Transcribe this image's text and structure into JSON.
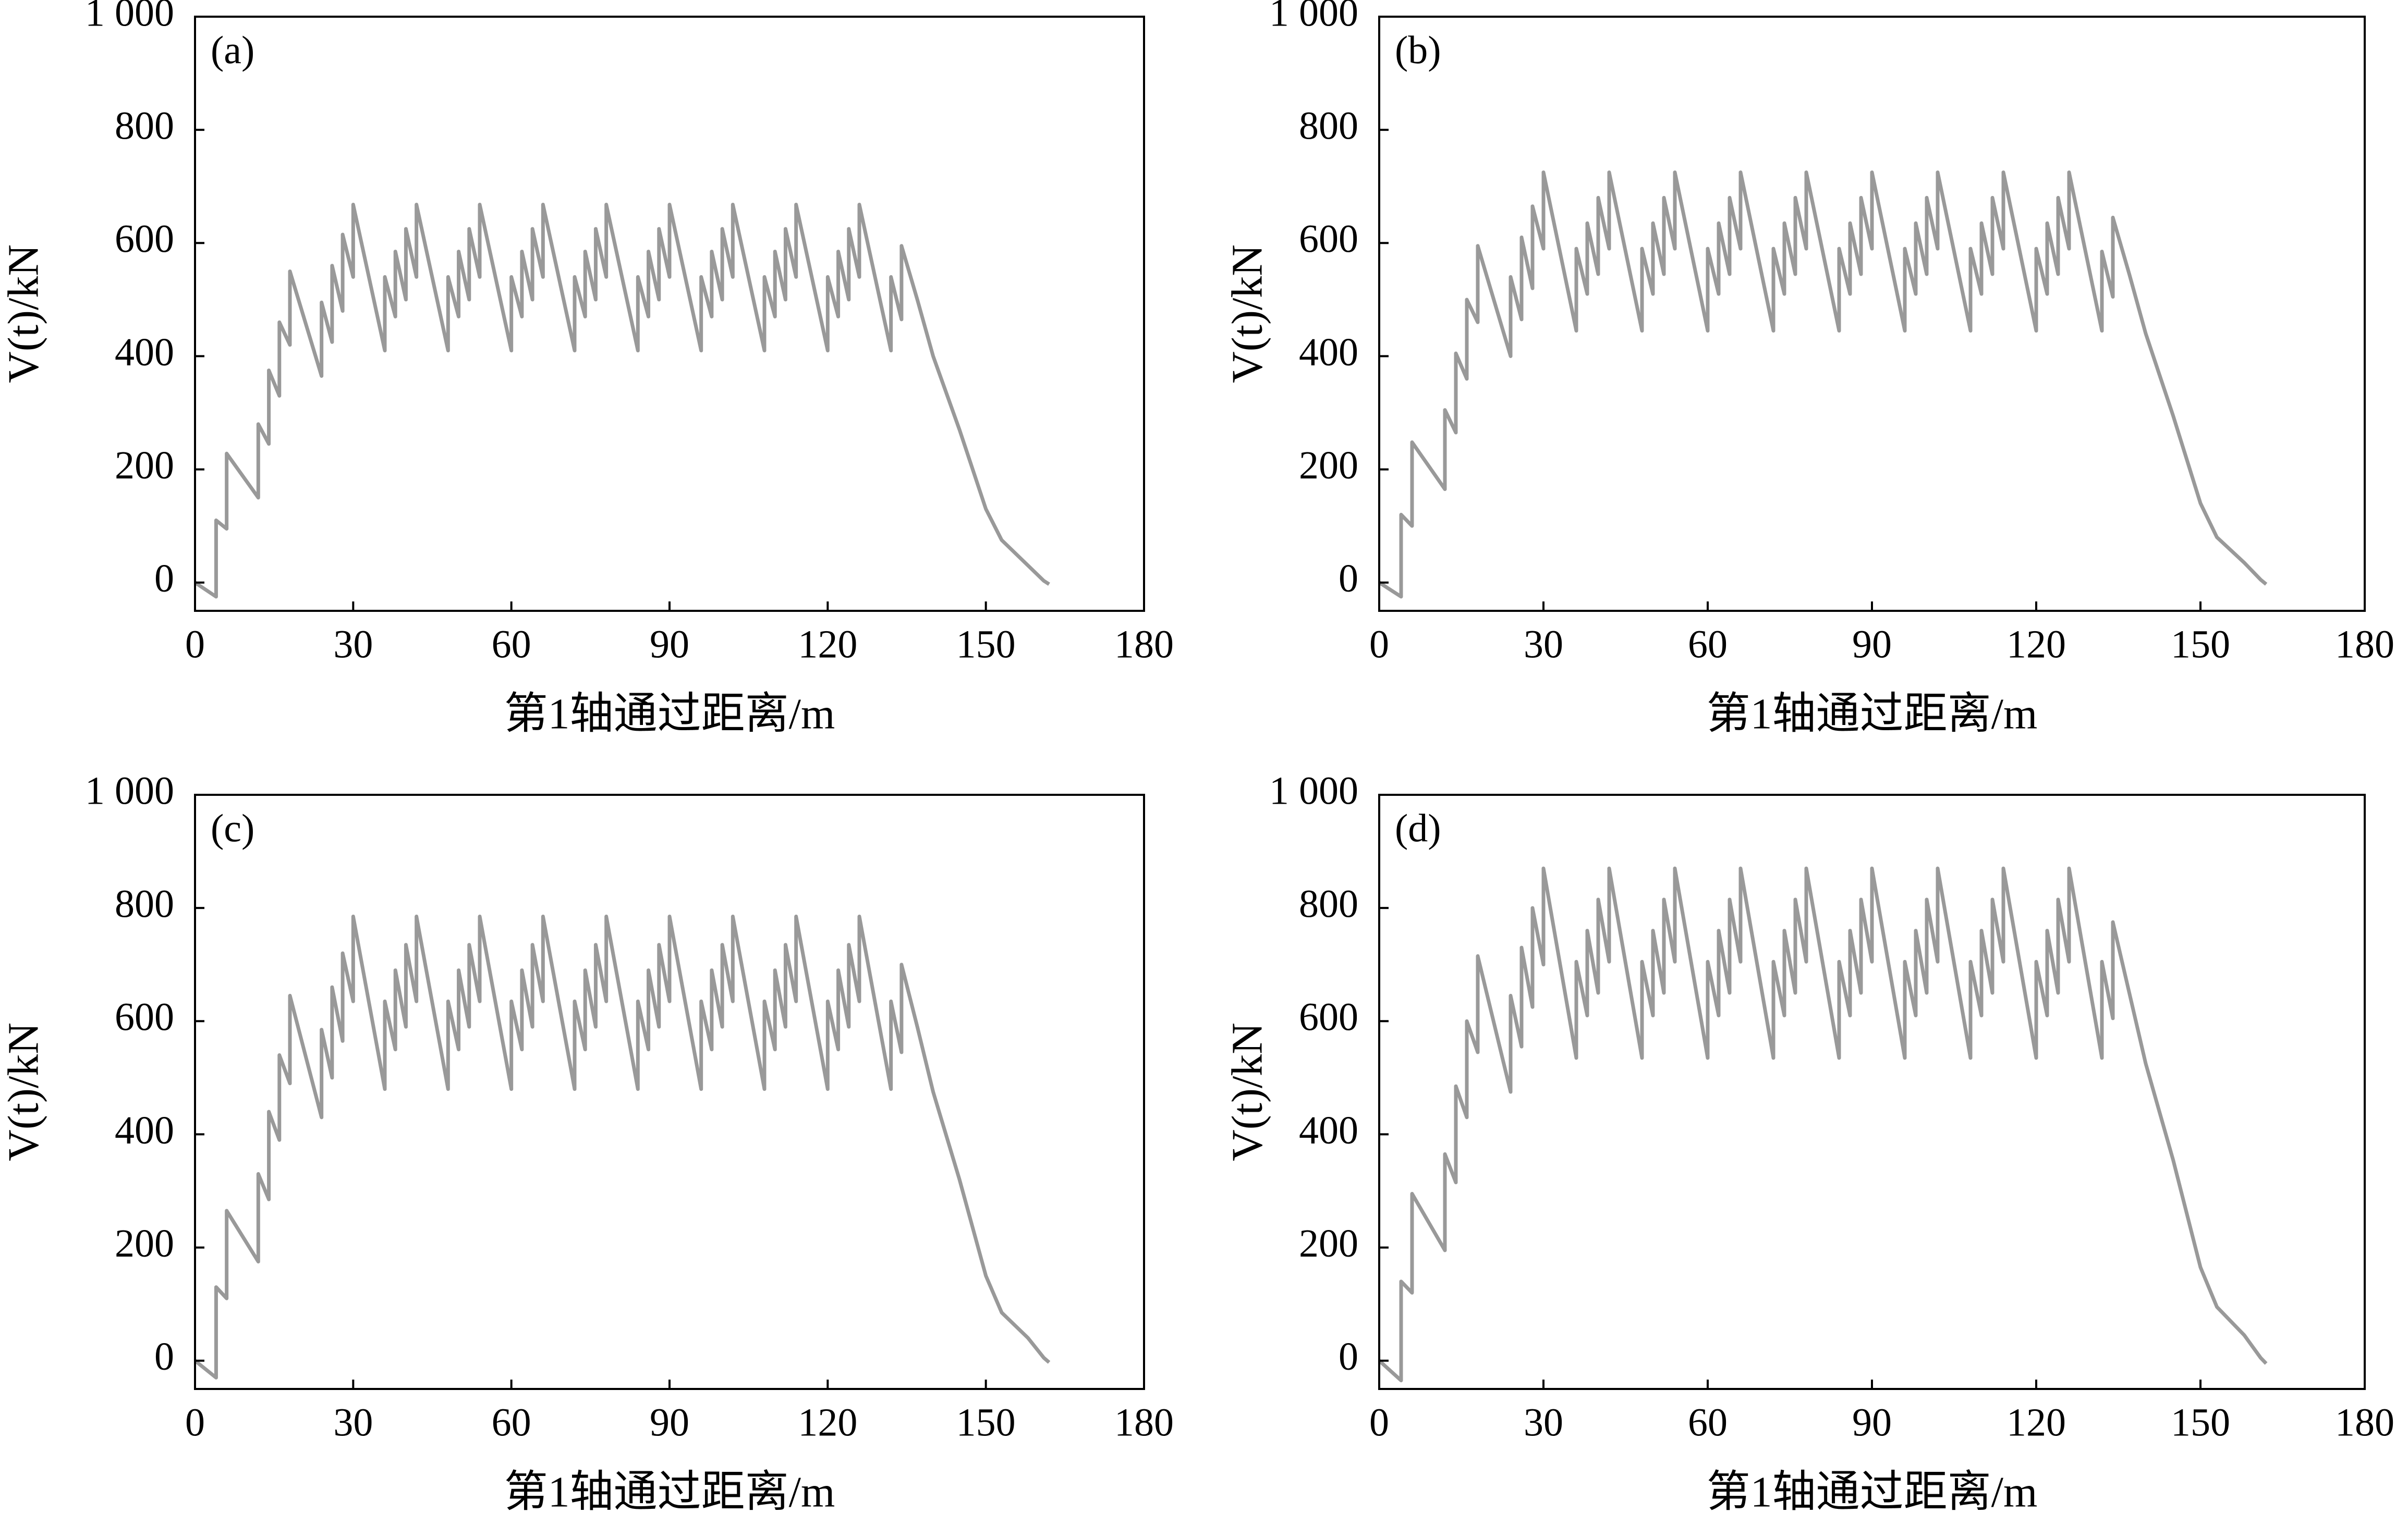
{
  "chart_data": [
    {
      "type": "line",
      "panel_label": "(a)",
      "xlabel": "第1轴通过距离/m",
      "ylabel": "V(t)/kN",
      "color": "#999999",
      "grid": false,
      "xlim": [
        0,
        180
      ],
      "xticks": [
        0,
        30,
        60,
        90,
        120,
        150,
        180
      ],
      "ylim": [
        -50,
        1000
      ],
      "yticks": [
        0,
        200,
        400,
        600,
        800,
        {
          "value": 1000,
          "label": "1 000"
        }
      ],
      "x": [
        0,
        4,
        4,
        6,
        6,
        12,
        12,
        14,
        14,
        16,
        16,
        18,
        18,
        24,
        24,
        26,
        26,
        28,
        28,
        30,
        30,
        36,
        36,
        38,
        38,
        40,
        40,
        42,
        42,
        48,
        48,
        50,
        50,
        52,
        52,
        54,
        54,
        60,
        60,
        62,
        62,
        64,
        64,
        66,
        66,
        72,
        72,
        74,
        74,
        76,
        76,
        78,
        78,
        84,
        84,
        86,
        86,
        88,
        88,
        90,
        90,
        96,
        96,
        98,
        98,
        100,
        100,
        102,
        102,
        108,
        108,
        110,
        110,
        112,
        112,
        114,
        114,
        120,
        120,
        122,
        122,
        124,
        124,
        126,
        126,
        132,
        132,
        134,
        134,
        137,
        140,
        145,
        150,
        153,
        158,
        161,
        162
      ],
      "values": [
        0,
        -25,
        110,
        95,
        228,
        150,
        280,
        245,
        375,
        330,
        460,
        420,
        550,
        365,
        495,
        425,
        560,
        480,
        615,
        540,
        668,
        410,
        540,
        470,
        585,
        500,
        625,
        540,
        668,
        410,
        540,
        470,
        585,
        500,
        625,
        540,
        668,
        410,
        540,
        470,
        585,
        500,
        625,
        540,
        668,
        410,
        540,
        470,
        585,
        500,
        625,
        540,
        668,
        410,
        540,
        470,
        585,
        500,
        625,
        540,
        668,
        410,
        540,
        470,
        585,
        500,
        625,
        540,
        668,
        410,
        540,
        470,
        585,
        500,
        625,
        540,
        668,
        410,
        540,
        470,
        585,
        500,
        625,
        540,
        668,
        410,
        540,
        465,
        595,
        500,
        400,
        270,
        130,
        75,
        30,
        3,
        -3
      ]
    },
    {
      "type": "line",
      "panel_label": "(b)",
      "xlabel": "第1轴通过距离/m",
      "ylabel": "V(t)/kN",
      "color": "#999999",
      "grid": false,
      "xlim": [
        0,
        180
      ],
      "xticks": [
        0,
        30,
        60,
        90,
        120,
        150,
        180
      ],
      "ylim": [
        -50,
        1000
      ],
      "yticks": [
        0,
        200,
        400,
        600,
        800,
        {
          "value": 1000,
          "label": "1 000"
        }
      ],
      "x": [
        0,
        4,
        4,
        6,
        6,
        12,
        12,
        14,
        14,
        16,
        16,
        18,
        18,
        24,
        24,
        26,
        26,
        28,
        28,
        30,
        30,
        36,
        36,
        38,
        38,
        40,
        40,
        42,
        42,
        48,
        48,
        50,
        50,
        52,
        52,
        54,
        54,
        60,
        60,
        62,
        62,
        64,
        64,
        66,
        66,
        72,
        72,
        74,
        74,
        76,
        76,
        78,
        78,
        84,
        84,
        86,
        86,
        88,
        88,
        90,
        90,
        96,
        96,
        98,
        98,
        100,
        100,
        102,
        102,
        108,
        108,
        110,
        110,
        112,
        112,
        114,
        114,
        120,
        120,
        122,
        122,
        124,
        124,
        126,
        126,
        132,
        132,
        134,
        134,
        137,
        140,
        145,
        150,
        153,
        158,
        161,
        162
      ],
      "values": [
        0,
        -25,
        120,
        100,
        248,
        165,
        305,
        265,
        405,
        360,
        500,
        460,
        595,
        400,
        540,
        465,
        610,
        520,
        665,
        590,
        725,
        445,
        590,
        510,
        635,
        545,
        680,
        590,
        725,
        445,
        590,
        510,
        635,
        545,
        680,
        590,
        725,
        445,
        590,
        510,
        635,
        545,
        680,
        590,
        725,
        445,
        590,
        510,
        635,
        545,
        680,
        590,
        725,
        445,
        590,
        510,
        635,
        545,
        680,
        590,
        725,
        445,
        590,
        510,
        635,
        545,
        680,
        590,
        725,
        445,
        590,
        510,
        635,
        545,
        680,
        590,
        725,
        445,
        590,
        510,
        635,
        545,
        680,
        590,
        725,
        445,
        585,
        505,
        645,
        545,
        440,
        295,
        140,
        80,
        35,
        5,
        -3
      ]
    },
    {
      "type": "line",
      "panel_label": "(c)",
      "xlabel": "第1轴通过距离/m",
      "ylabel": "V(t)/kN",
      "color": "#999999",
      "grid": false,
      "xlim": [
        0,
        180
      ],
      "xticks": [
        0,
        30,
        60,
        90,
        120,
        150,
        180
      ],
      "ylim": [
        -50,
        1000
      ],
      "yticks": [
        0,
        200,
        400,
        600,
        800,
        {
          "value": 1000,
          "label": "1 000"
        }
      ],
      "x": [
        0,
        4,
        4,
        6,
        6,
        12,
        12,
        14,
        14,
        16,
        16,
        18,
        18,
        24,
        24,
        26,
        26,
        28,
        28,
        30,
        30,
        36,
        36,
        38,
        38,
        40,
        40,
        42,
        42,
        48,
        48,
        50,
        50,
        52,
        52,
        54,
        54,
        60,
        60,
        62,
        62,
        64,
        64,
        66,
        66,
        72,
        72,
        74,
        74,
        76,
        76,
        78,
        78,
        84,
        84,
        86,
        86,
        88,
        88,
        90,
        90,
        96,
        96,
        98,
        98,
        100,
        100,
        102,
        102,
        108,
        108,
        110,
        110,
        112,
        112,
        114,
        114,
        120,
        120,
        122,
        122,
        124,
        124,
        126,
        126,
        132,
        132,
        134,
        134,
        137,
        140,
        145,
        150,
        153,
        158,
        161,
        162
      ],
      "values": [
        0,
        -30,
        130,
        110,
        265,
        175,
        330,
        285,
        440,
        390,
        540,
        490,
        645,
        430,
        585,
        500,
        660,
        565,
        720,
        635,
        785,
        480,
        635,
        550,
        690,
        590,
        735,
        635,
        785,
        480,
        635,
        550,
        690,
        590,
        735,
        635,
        785,
        480,
        635,
        550,
        690,
        590,
        735,
        635,
        785,
        480,
        635,
        550,
        690,
        590,
        735,
        635,
        785,
        480,
        635,
        550,
        690,
        590,
        735,
        635,
        785,
        480,
        635,
        550,
        690,
        590,
        735,
        635,
        785,
        480,
        635,
        550,
        690,
        590,
        735,
        635,
        785,
        480,
        635,
        550,
        690,
        590,
        735,
        635,
        785,
        480,
        635,
        545,
        700,
        590,
        475,
        320,
        150,
        85,
        40,
        5,
        -3
      ]
    },
    {
      "type": "line",
      "panel_label": "(d)",
      "xlabel": "第1轴通过距离/m",
      "ylabel": "V(t)/kN",
      "color": "#999999",
      "grid": false,
      "xlim": [
        0,
        180
      ],
      "xticks": [
        0,
        30,
        60,
        90,
        120,
        150,
        180
      ],
      "ylim": [
        -50,
        1000
      ],
      "yticks": [
        0,
        200,
        400,
        600,
        800,
        {
          "value": 1000,
          "label": "1 000"
        }
      ],
      "x": [
        0,
        4,
        4,
        6,
        6,
        12,
        12,
        14,
        14,
        16,
        16,
        18,
        18,
        24,
        24,
        26,
        26,
        28,
        28,
        30,
        30,
        36,
        36,
        38,
        38,
        40,
        40,
        42,
        42,
        48,
        48,
        50,
        50,
        52,
        52,
        54,
        54,
        60,
        60,
        62,
        62,
        64,
        64,
        66,
        66,
        72,
        72,
        74,
        74,
        76,
        76,
        78,
        78,
        84,
        84,
        86,
        86,
        88,
        88,
        90,
        90,
        96,
        96,
        98,
        98,
        100,
        100,
        102,
        102,
        108,
        108,
        110,
        110,
        112,
        112,
        114,
        114,
        120,
        120,
        122,
        122,
        124,
        124,
        126,
        126,
        132,
        132,
        134,
        134,
        137,
        140,
        145,
        150,
        153,
        158,
        161,
        162
      ],
      "values": [
        0,
        -35,
        140,
        120,
        295,
        195,
        365,
        315,
        485,
        430,
        600,
        545,
        715,
        475,
        645,
        555,
        730,
        625,
        800,
        700,
        870,
        535,
        705,
        610,
        760,
        650,
        815,
        705,
        870,
        535,
        705,
        610,
        760,
        650,
        815,
        705,
        870,
        535,
        705,
        610,
        760,
        650,
        815,
        705,
        870,
        535,
        705,
        610,
        760,
        650,
        815,
        705,
        870,
        535,
        705,
        610,
        760,
        650,
        815,
        705,
        870,
        535,
        705,
        610,
        760,
        650,
        815,
        705,
        870,
        535,
        705,
        610,
        760,
        650,
        815,
        705,
        870,
        535,
        705,
        610,
        760,
        650,
        815,
        705,
        870,
        535,
        705,
        605,
        775,
        650,
        525,
        355,
        165,
        95,
        45,
        5,
        -5
      ]
    }
  ]
}
